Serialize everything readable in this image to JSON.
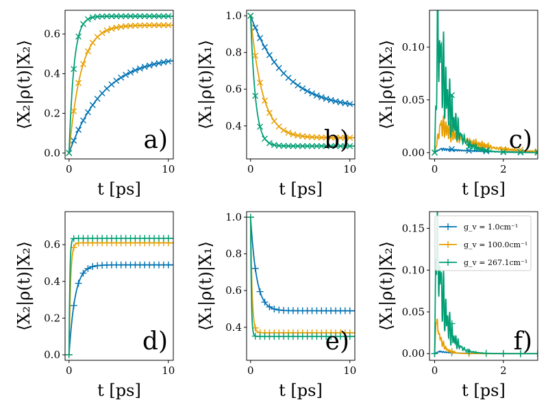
{
  "colors": {
    "blue": "#0072B2",
    "orange": "#E69F00",
    "green": "#009E73"
  },
  "legend": [
    "g_v = 1.0cm⁻¹",
    "g_v = 100.0cm⁻¹",
    "g_v = 267.1cm⁻¹"
  ],
  "chart_data": [
    {
      "type": "line",
      "panel": "a)",
      "ylabel": "⟨X₂|ρ(t)|X₂⟩",
      "xlabel": "t [ps]",
      "xlim": [
        -0.4,
        10.5
      ],
      "ylim": [
        -0.03,
        0.72
      ],
      "xticks": [
        "0",
        "10"
      ],
      "xtick_values": [
        0,
        10
      ],
      "yticks": [
        "0.0",
        "0.2",
        "0.4",
        "0.6"
      ],
      "ytick_values": [
        0,
        0.2,
        0.4,
        0.6
      ],
      "series": [
        {
          "name": "1.0",
          "color": "blue",
          "model": "exp",
          "y0": 0,
          "yinf": 0.49,
          "tau": 3.5,
          "marker": "x"
        },
        {
          "name": "100.0",
          "color": "orange",
          "model": "exp",
          "y0": 0,
          "yinf": 0.645,
          "tau": 1.2,
          "marker": "x"
        },
        {
          "name": "267.1",
          "color": "green",
          "model": "exp",
          "y0": 0,
          "yinf": 0.69,
          "tau": 0.5,
          "marker": "x"
        }
      ]
    },
    {
      "type": "line",
      "panel": "b)",
      "ylabel": "⟨X₁|ρ(t)|X₁⟩",
      "xlabel": "t [ps]",
      "xlim": [
        -0.4,
        10.5
      ],
      "ylim": [
        0.22,
        1.03
      ],
      "xticks": [
        "0",
        "10"
      ],
      "xtick_values": [
        0,
        10
      ],
      "yticks": [
        "0.4",
        "0.6",
        "0.8",
        "1.0"
      ],
      "ytick_values": [
        0.4,
        0.6,
        0.8,
        1.0
      ],
      "series": [
        {
          "name": "1.0",
          "color": "blue",
          "model": "exp",
          "y0": 1.0,
          "yinf": 0.49,
          "tau": 3.5,
          "marker": "x"
        },
        {
          "name": "100.0",
          "color": "orange",
          "model": "exp",
          "y0": 1.0,
          "yinf": 0.335,
          "tau": 1.2,
          "marker": "x"
        },
        {
          "name": "267.1",
          "color": "green",
          "model": "exp",
          "y0": 1.0,
          "yinf": 0.29,
          "tau": 0.5,
          "marker": "x"
        }
      ]
    },
    {
      "type": "line",
      "panel": "c)",
      "ylabel": "⟨X₁|ρ(t)|X₂⟩",
      "xlabel": "t [ps]",
      "xlim": [
        -0.15,
        3.0
      ],
      "ylim": [
        -0.006,
        0.135
      ],
      "xticks": [
        "0",
        "2"
      ],
      "xtick_values": [
        0,
        2
      ],
      "yticks": [
        "0.00",
        "0.05",
        "0.10"
      ],
      "ytick_values": [
        0,
        0.05,
        0.1
      ],
      "series": [
        {
          "name": "1.0",
          "color": "blue",
          "model": "blip",
          "peak": 0.004,
          "tp": 0.2,
          "decay": 1.2,
          "osc": 0.2,
          "marker": "x"
        },
        {
          "name": "100.0",
          "color": "orange",
          "model": "blip",
          "peak": 0.03,
          "tp": 0.2,
          "decay": 0.9,
          "osc": 0.6,
          "marker": "x"
        },
        {
          "name": "267.1",
          "color": "green",
          "model": "blip",
          "peak": 0.128,
          "tp": 0.1,
          "decay": 0.35,
          "osc": 1.0,
          "marker": "x"
        }
      ]
    },
    {
      "type": "line",
      "panel": "d)",
      "ylabel": "⟨X₂|ρ(t)|X₂⟩",
      "xlabel": "t [ps]",
      "xlim": [
        -0.4,
        10.5
      ],
      "ylim": [
        -0.03,
        0.78
      ],
      "xticks": [
        "0",
        "10"
      ],
      "xtick_values": [
        0,
        10
      ],
      "yticks": [
        "0.0",
        "0.2",
        "0.4",
        "0.6"
      ],
      "ytick_values": [
        0,
        0.2,
        0.4,
        0.6
      ],
      "series": [
        {
          "name": "1.0",
          "color": "blue",
          "model": "spike",
          "y0": 0,
          "yinf": 0.49,
          "tau": 0.6,
          "spike": 0,
          "marker": "+"
        },
        {
          "name": "100.0",
          "color": "orange",
          "model": "spike",
          "y0": 0,
          "yinf": 0.61,
          "tau": 0.15,
          "spike": 0.68,
          "marker": "+"
        },
        {
          "name": "267.1",
          "color": "green",
          "model": "spike",
          "y0": 0,
          "yinf": 0.635,
          "tau": 0.08,
          "spike": 0.75,
          "marker": "+"
        }
      ]
    },
    {
      "type": "line",
      "panel": "e)",
      "ylabel": "⟨X₁|ρ(t)|X₁⟩",
      "xlabel": "t [ps]",
      "xlim": [
        -0.4,
        10.5
      ],
      "ylim": [
        0.22,
        1.03
      ],
      "xticks": [
        "0",
        "10"
      ],
      "xtick_values": [
        0,
        10
      ],
      "yticks": [
        "0.4",
        "0.6",
        "0.8",
        "1.0"
      ],
      "ytick_values": [
        0.4,
        0.6,
        0.8,
        1.0
      ],
      "series": [
        {
          "name": "1.0",
          "color": "blue",
          "model": "spike",
          "y0": 1.0,
          "yinf": 0.49,
          "tau": 0.6,
          "spike": 0,
          "marker": "+"
        },
        {
          "name": "100.0",
          "color": "orange",
          "model": "spike",
          "y0": 1.0,
          "yinf": 0.37,
          "tau": 0.15,
          "spike": 0.3,
          "marker": "+"
        },
        {
          "name": "267.1",
          "color": "green",
          "model": "spike",
          "y0": 1.0,
          "yinf": 0.35,
          "tau": 0.08,
          "spike": 0.26,
          "marker": "+"
        }
      ]
    },
    {
      "type": "line",
      "panel": "f)",
      "ylabel": "⟨X₁|ρ(t)|X₂⟩",
      "xlabel": "t [ps]",
      "xlim": [
        -0.15,
        3.0
      ],
      "ylim": [
        -0.008,
        0.17
      ],
      "xticks": [
        "0",
        "2"
      ],
      "xtick_values": [
        0,
        2
      ],
      "yticks": [
        "0.00",
        "0.05",
        "0.10",
        "0.15"
      ],
      "ytick_values": [
        0,
        0.05,
        0.1,
        0.15
      ],
      "legend": true,
      "series": [
        {
          "name": "1.0",
          "color": "blue",
          "model": "blip",
          "peak": 0.003,
          "tp": 0.15,
          "decay": 0.4,
          "osc": 0.2,
          "marker": "+"
        },
        {
          "name": "100.0",
          "color": "orange",
          "model": "blip",
          "peak": 0.048,
          "tp": 0.05,
          "decay": 0.15,
          "osc": 0.5,
          "marker": "+"
        },
        {
          "name": "267.1",
          "color": "green",
          "model": "blip",
          "peak": 0.163,
          "tp": 0.05,
          "decay": 0.25,
          "osc": 1.0,
          "marker": "+"
        }
      ]
    }
  ]
}
